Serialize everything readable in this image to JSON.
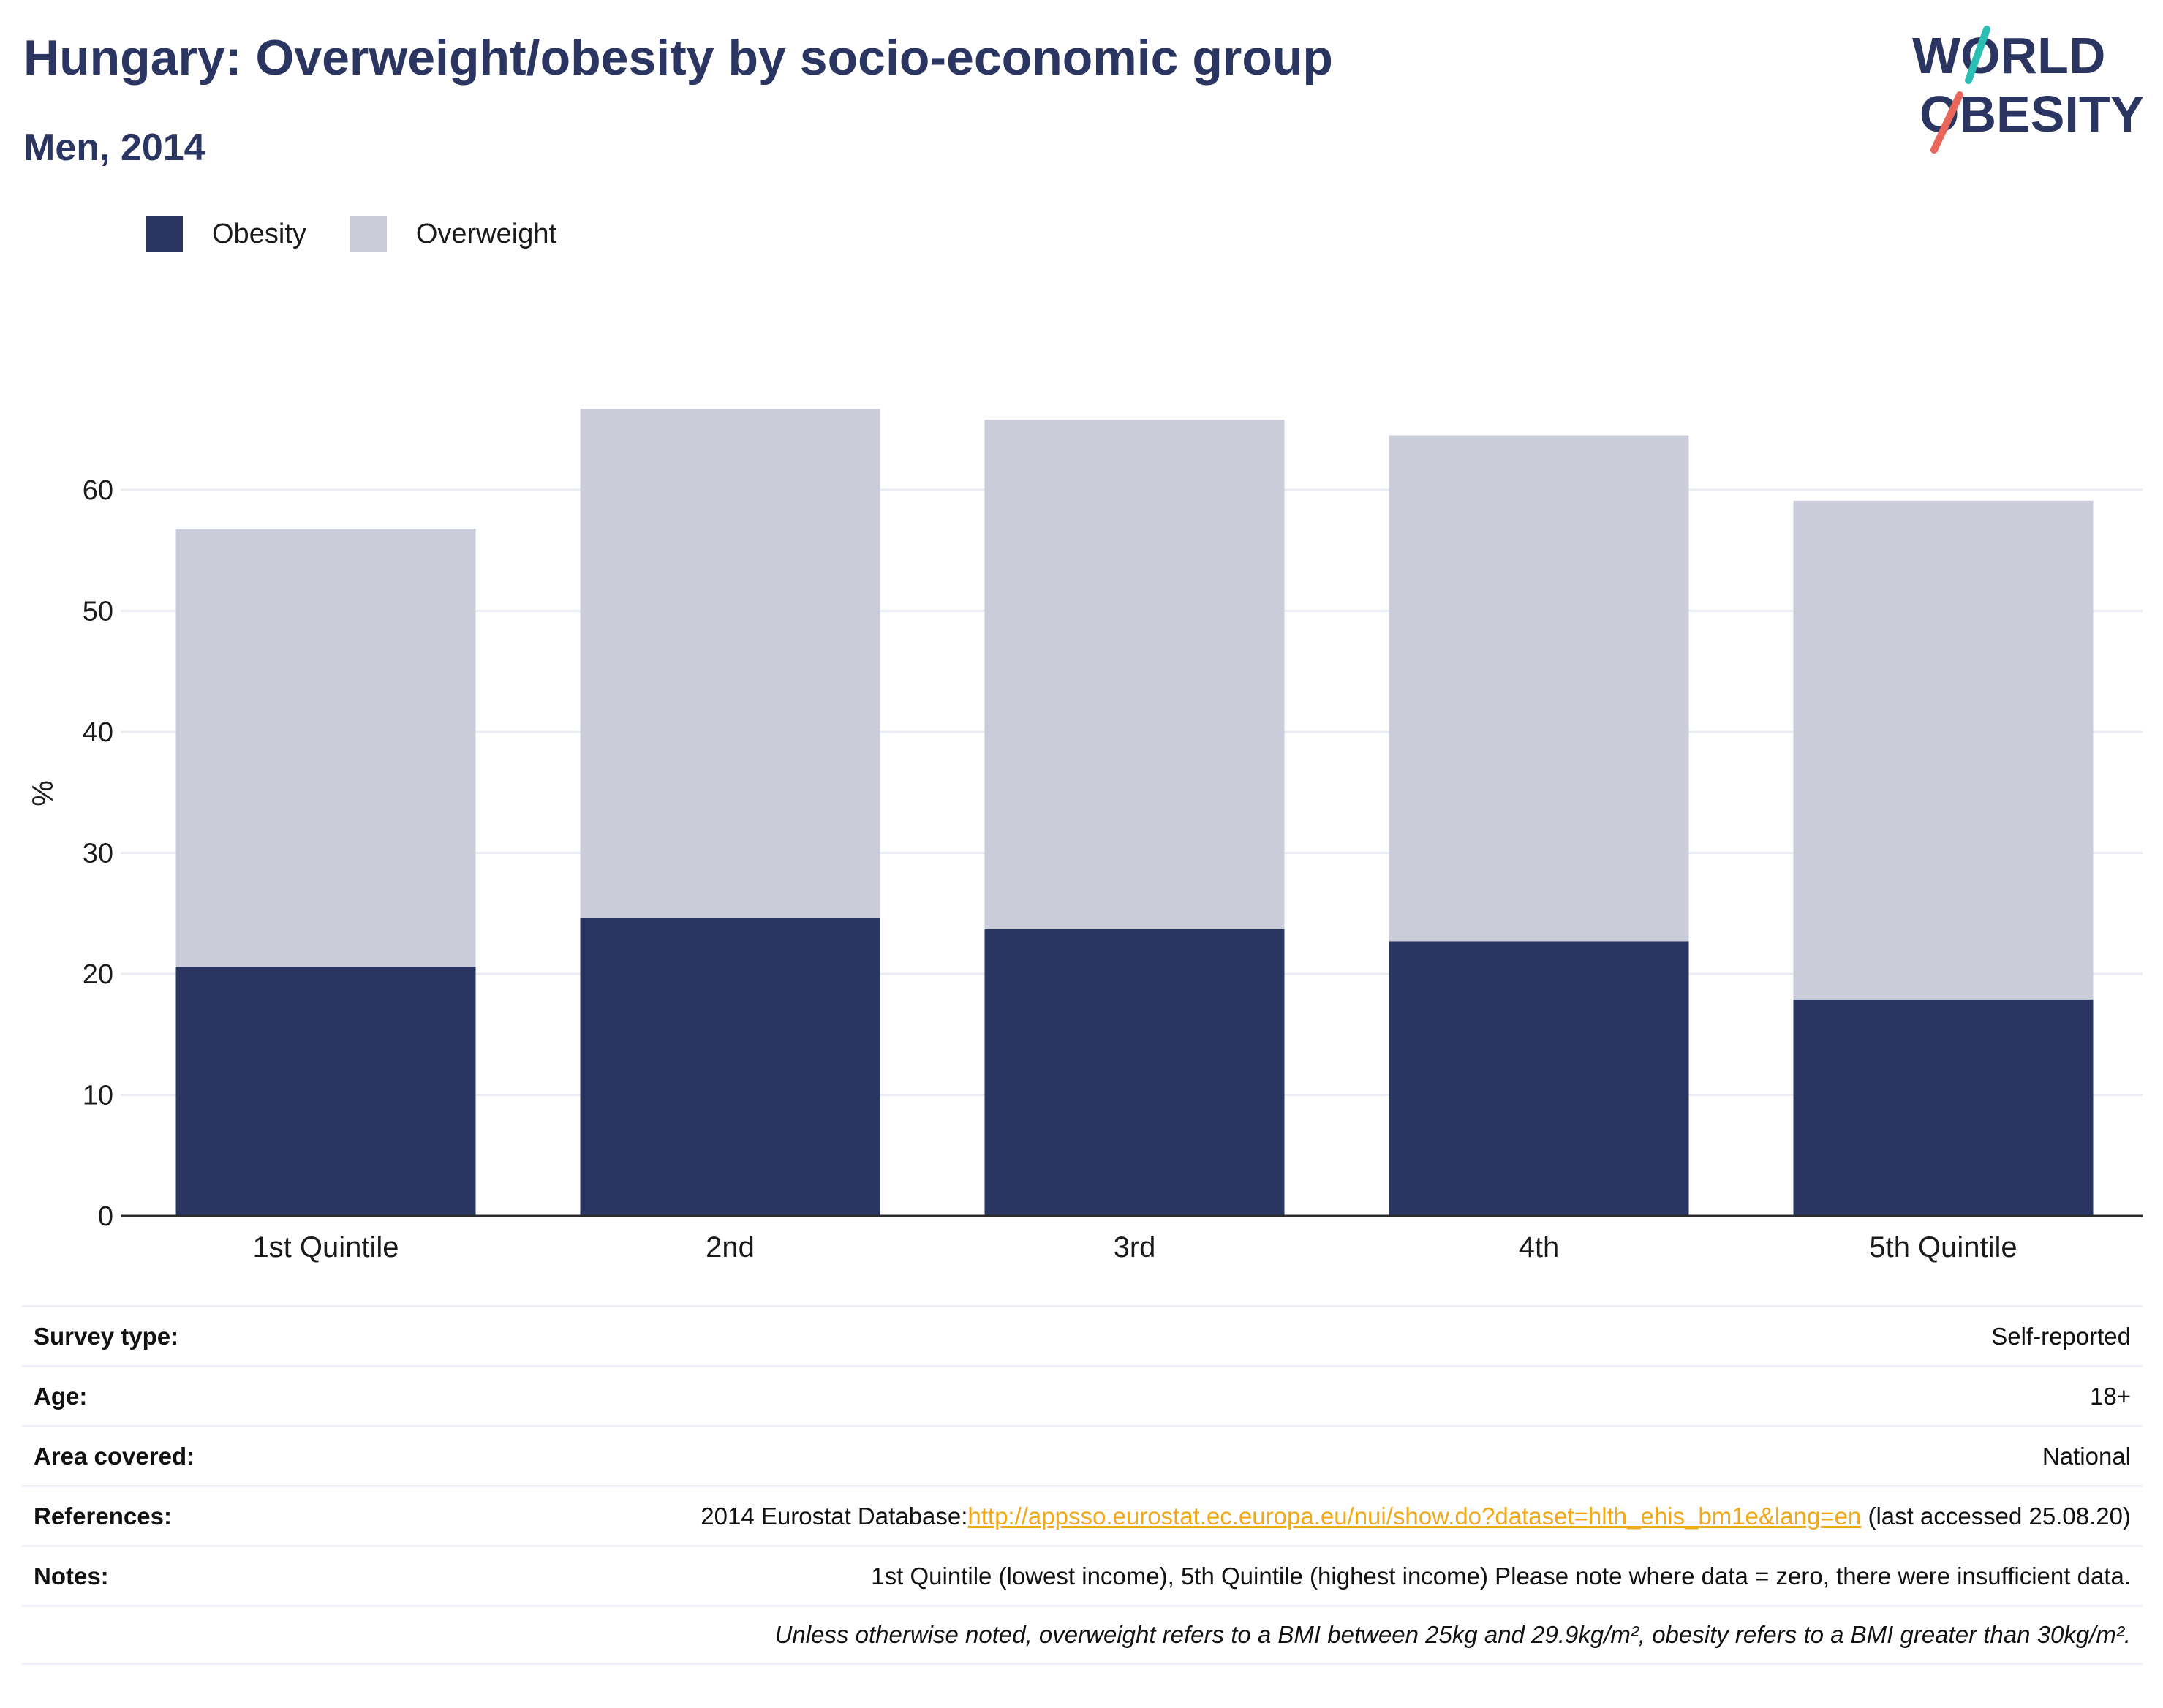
{
  "header": {
    "title": "Hungary: Overweight/obesity by socio-economic group",
    "subtitle": "Men, 2014"
  },
  "logo": {
    "line1": "WORLD",
    "line2": "OBESITY"
  },
  "colors": {
    "obesity": "#2a3561",
    "overweight": "#cacdd9",
    "link": "#f0a91c",
    "logo_teal": "#2bbfb3",
    "logo_coral": "#e8675a"
  },
  "chart_data": {
    "type": "bar",
    "stacked": true,
    "categories": [
      "1st Quintile",
      "2nd",
      "3rd",
      "4th",
      "5th Quintile"
    ],
    "series": [
      {
        "name": "Obesity",
        "values": [
          20.6,
          24.6,
          23.7,
          22.7,
          17.9
        ]
      },
      {
        "name": "Overweight",
        "values": [
          36.2,
          42.1,
          42.1,
          41.8,
          41.2
        ]
      }
    ],
    "ylabel": "%",
    "xlabel": "",
    "ylim": [
      0,
      70
    ],
    "yticks": [
      0,
      10,
      20,
      30,
      40,
      50,
      60
    ],
    "grid": true,
    "legend": "top-left"
  },
  "info": {
    "rows": [
      {
        "label": "Survey type:",
        "value": "Self-reported"
      },
      {
        "label": "Age:",
        "value": "18+"
      },
      {
        "label": "Area covered:",
        "value": "National"
      },
      {
        "label": "References:",
        "value_prefix": "2014 Eurostat Database:",
        "link": "http://appsso.eurostat.ec.europa.eu/nui/show.do?dataset=hlth_ehis_bm1e&lang=en",
        "value_suffix": " (last accessed 25.08.20)"
      },
      {
        "label": "Notes:",
        "value": "1st Quintile (lowest income), 5th Quintile (highest income) Please note where data = zero, there were insufficient data."
      },
      {
        "label": "",
        "value": "Unless otherwise noted, overweight refers to a BMI between 25kg and 29.9kg/m², obesity refers to a BMI greater than 30kg/m²."
      }
    ]
  }
}
